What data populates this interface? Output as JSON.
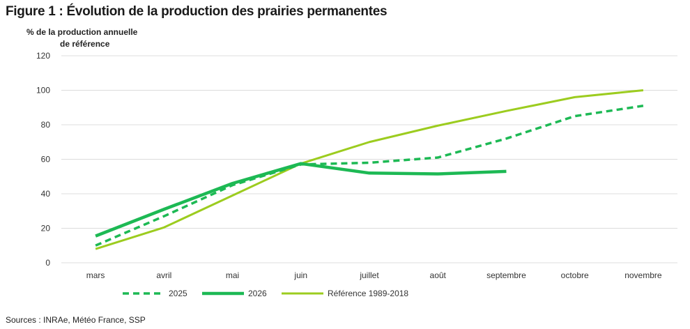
{
  "header": {
    "title": "Figure 1 : Évolution de la production des prairies permanentes",
    "ylabel_line1": "% de la production annuelle",
    "ylabel_line2": "de référence"
  },
  "footer": {
    "sources": "Sources : INRAe, Météo France, SSP"
  },
  "colors": {
    "green_dark": "#1db954",
    "green_light": "#9ccc1f",
    "grid": "#dcdcdc"
  },
  "chart_data": {
    "type": "line",
    "title": "Figure 1 : Évolution de la production des prairies permanentes",
    "ylabel": "% de la production annuelle de référence",
    "xlabel": "",
    "categories": [
      "mars",
      "avril",
      "mai",
      "juin",
      "juillet",
      "août",
      "septembre",
      "octobre",
      "novembre"
    ],
    "ylim": [
      0,
      120
    ],
    "yticks": [
      0,
      20,
      40,
      60,
      80,
      100,
      120
    ],
    "grid": true,
    "legend_position": "bottom",
    "series": [
      {
        "name": "2025",
        "style": "dashed",
        "color": "#1db954",
        "values": [
          10,
          27,
          45,
          57,
          58,
          61,
          72,
          85,
          91
        ]
      },
      {
        "name": "2026",
        "style": "solid-thick",
        "color": "#1db954",
        "values": [
          15.5,
          31,
          46,
          57.5,
          52,
          51.5,
          53,
          null,
          null
        ]
      },
      {
        "name": "Référence 1989-2018",
        "style": "solid",
        "color": "#9ccc1f",
        "values": [
          8,
          20.5,
          39,
          57.5,
          70,
          79.5,
          88,
          96,
          100
        ]
      }
    ]
  }
}
